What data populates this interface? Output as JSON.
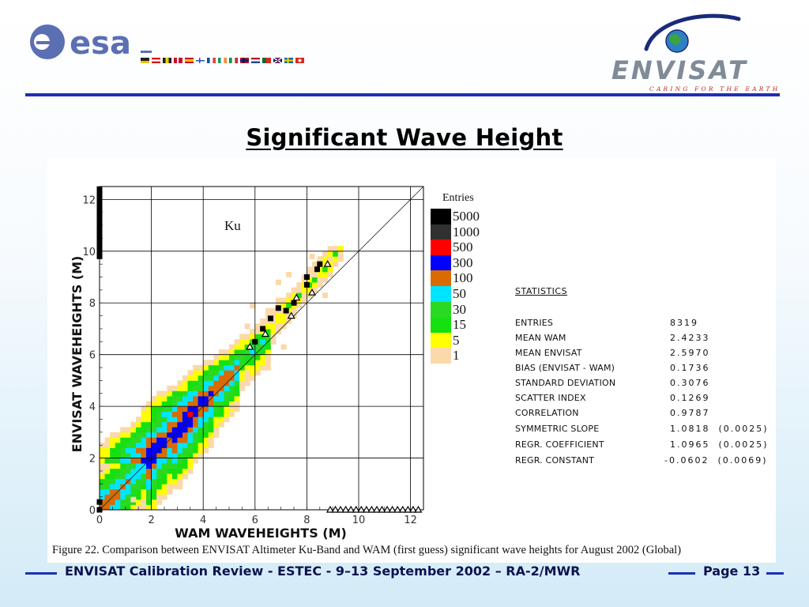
{
  "header": {
    "esa_logo_text": "esa",
    "envisat_logo_text": "ENVISAT",
    "envisat_tagline": "CARING FOR THE EARTH"
  },
  "slide_title": "Significant Wave Height",
  "chart_data": {
    "type": "heatmap",
    "annotation": "Ku",
    "xlabel": "WAM  WAVEHEIGHTS (M)",
    "ylabel": "ENVISAT  WAVEHEIGHTS (M)",
    "xlim": [
      0,
      12.5
    ],
    "ylim": [
      0,
      12.5
    ],
    "xticks": [
      0,
      2,
      4,
      6,
      8,
      10,
      12
    ],
    "yticks": [
      0,
      2,
      4,
      6,
      8,
      10,
      12
    ],
    "grid": true,
    "reference_line": "y = x",
    "legend_title": "Entries",
    "legend_position": "right",
    "legend": [
      {
        "label": "5000",
        "color": "#000000"
      },
      {
        "label": "1000",
        "color": "#303030"
      },
      {
        "label": "500",
        "color": "#ff0000"
      },
      {
        "label": "300",
        "color": "#0000ff"
      },
      {
        "label": "100",
        "color": "#d96b00"
      },
      {
        "label": "50",
        "color": "#00e5ff"
      },
      {
        "label": "30",
        "color": "#2bd923"
      },
      {
        "label": "15",
        "color": "#15e010"
      },
      {
        "label": "5",
        "color": "#ffff00"
      },
      {
        "label": "1",
        "color": "#fbd9aa"
      }
    ],
    "bin_centers": [
      {
        "x": 0.2,
        "y": 0.2
      },
      {
        "x": 0.5,
        "y": 0.5
      },
      {
        "x": 0.8,
        "y": 0.8
      },
      {
        "x": 1.1,
        "y": 1.15
      },
      {
        "x": 1.5,
        "y": 1.6
      },
      {
        "x": 1.9,
        "y": 2.0
      },
      {
        "x": 2.3,
        "y": 2.45
      },
      {
        "x": 2.7,
        "y": 2.9
      },
      {
        "x": 3.1,
        "y": 3.3
      },
      {
        "x": 3.5,
        "y": 3.7
      },
      {
        "x": 3.9,
        "y": 4.1
      },
      {
        "x": 4.3,
        "y": 4.5
      },
      {
        "x": 4.7,
        "y": 4.95
      },
      {
        "x": 5.1,
        "y": 5.4
      },
      {
        "x": 5.5,
        "y": 5.85
      },
      {
        "x": 5.9,
        "y": 6.3
      },
      {
        "x": 6.3,
        "y": 6.7
      },
      {
        "x": 6.7,
        "y": 7.2
      },
      {
        "x": 7.1,
        "y": 7.6
      },
      {
        "x": 7.6,
        "y": 8.2
      },
      {
        "x": 8.2,
        "y": 8.9
      },
      {
        "x": 8.6,
        "y": 9.4
      }
    ],
    "square_markers": [
      {
        "x": 0.0,
        "y": 9.8
      },
      {
        "x": 0.0,
        "y": 10.0
      },
      {
        "x": 0.0,
        "y": 10.2
      },
      {
        "x": 0.0,
        "y": 10.4
      },
      {
        "x": 0.0,
        "y": 10.6
      },
      {
        "x": 0.0,
        "y": 10.8
      },
      {
        "x": 0.0,
        "y": 11.0
      },
      {
        "x": 0.0,
        "y": 11.2
      },
      {
        "x": 0.0,
        "y": 11.4
      },
      {
        "x": 0.0,
        "y": 11.6
      },
      {
        "x": 0.0,
        "y": 11.8
      },
      {
        "x": 0.0,
        "y": 12.0
      },
      {
        "x": 0.0,
        "y": 12.2
      },
      {
        "x": 0.0,
        "y": 12.4
      },
      {
        "x": 0.0,
        "y": 0.0
      },
      {
        "x": 0.0,
        "y": 0.3
      },
      {
        "x": 6.0,
        "y": 6.5
      },
      {
        "x": 6.3,
        "y": 7.0
      },
      {
        "x": 6.6,
        "y": 7.4
      },
      {
        "x": 6.9,
        "y": 7.8
      },
      {
        "x": 7.2,
        "y": 7.7
      },
      {
        "x": 7.5,
        "y": 8.0
      },
      {
        "x": 8.0,
        "y": 8.7
      },
      {
        "x": 8.0,
        "y": 9.0
      },
      {
        "x": 8.4,
        "y": 9.3
      },
      {
        "x": 8.5,
        "y": 9.5
      }
    ],
    "triangle_markers": [
      {
        "x": 8.8,
        "y": 9.5
      },
      {
        "x": 8.2,
        "y": 8.4
      },
      {
        "x": 7.6,
        "y": 8.2
      },
      {
        "x": 7.4,
        "y": 7.5
      },
      {
        "x": 6.4,
        "y": 6.8
      },
      {
        "x": 5.8,
        "y": 6.3
      },
      {
        "x": 8.9,
        "y": 0.0
      },
      {
        "x": 9.1,
        "y": 0.0
      },
      {
        "x": 9.3,
        "y": 0.0
      },
      {
        "x": 9.5,
        "y": 0.0
      },
      {
        "x": 9.7,
        "y": 0.0
      },
      {
        "x": 9.9,
        "y": 0.0
      },
      {
        "x": 10.1,
        "y": 0.0
      },
      {
        "x": 10.3,
        "y": 0.0
      },
      {
        "x": 10.5,
        "y": 0.0
      },
      {
        "x": 10.7,
        "y": 0.0
      },
      {
        "x": 10.9,
        "y": 0.0
      },
      {
        "x": 11.1,
        "y": 0.0
      },
      {
        "x": 11.3,
        "y": 0.0
      },
      {
        "x": 11.5,
        "y": 0.0
      },
      {
        "x": 11.7,
        "y": 0.0
      },
      {
        "x": 11.9,
        "y": 0.0
      },
      {
        "x": 12.1,
        "y": 0.0
      },
      {
        "x": 12.3,
        "y": 0.0
      }
    ]
  },
  "statistics": {
    "heading": "STATISTICS",
    "rows": [
      {
        "label": "ENTRIES",
        "value": "8319"
      },
      {
        "label": "MEAN WAM",
        "value": "2.4233"
      },
      {
        "label": "MEAN ENVISAT",
        "value": "2.5970"
      },
      {
        "label": "BIAS (ENVISAT - WAM)",
        "value": "0.1736"
      },
      {
        "label": "STANDARD DEVIATION",
        "value": "0.3076"
      },
      {
        "label": "SCATTER INDEX",
        "value": "0.1269"
      },
      {
        "label": "CORRELATION",
        "value": "0.9787"
      },
      {
        "label": "SYMMETRIC SLOPE",
        "value": "1.0818  (0.0025)"
      },
      {
        "label": "REGR. COEFFICIENT",
        "value": "1.0965  (0.0025)"
      },
      {
        "label": "REGR. CONSTANT",
        "value": "-0.0602  (0.0069)"
      }
    ]
  },
  "caption": "Figure 22.  Comparison between ENVISAT Altimeter Ku-Band and WAM (first guess) significant wave heights for August 2002 (Global)",
  "footer": {
    "text": "ENVISAT Calibration Review - ESTEC - 9–13 September 2002 – RA-2/MWR",
    "page_label": "Page 13"
  }
}
